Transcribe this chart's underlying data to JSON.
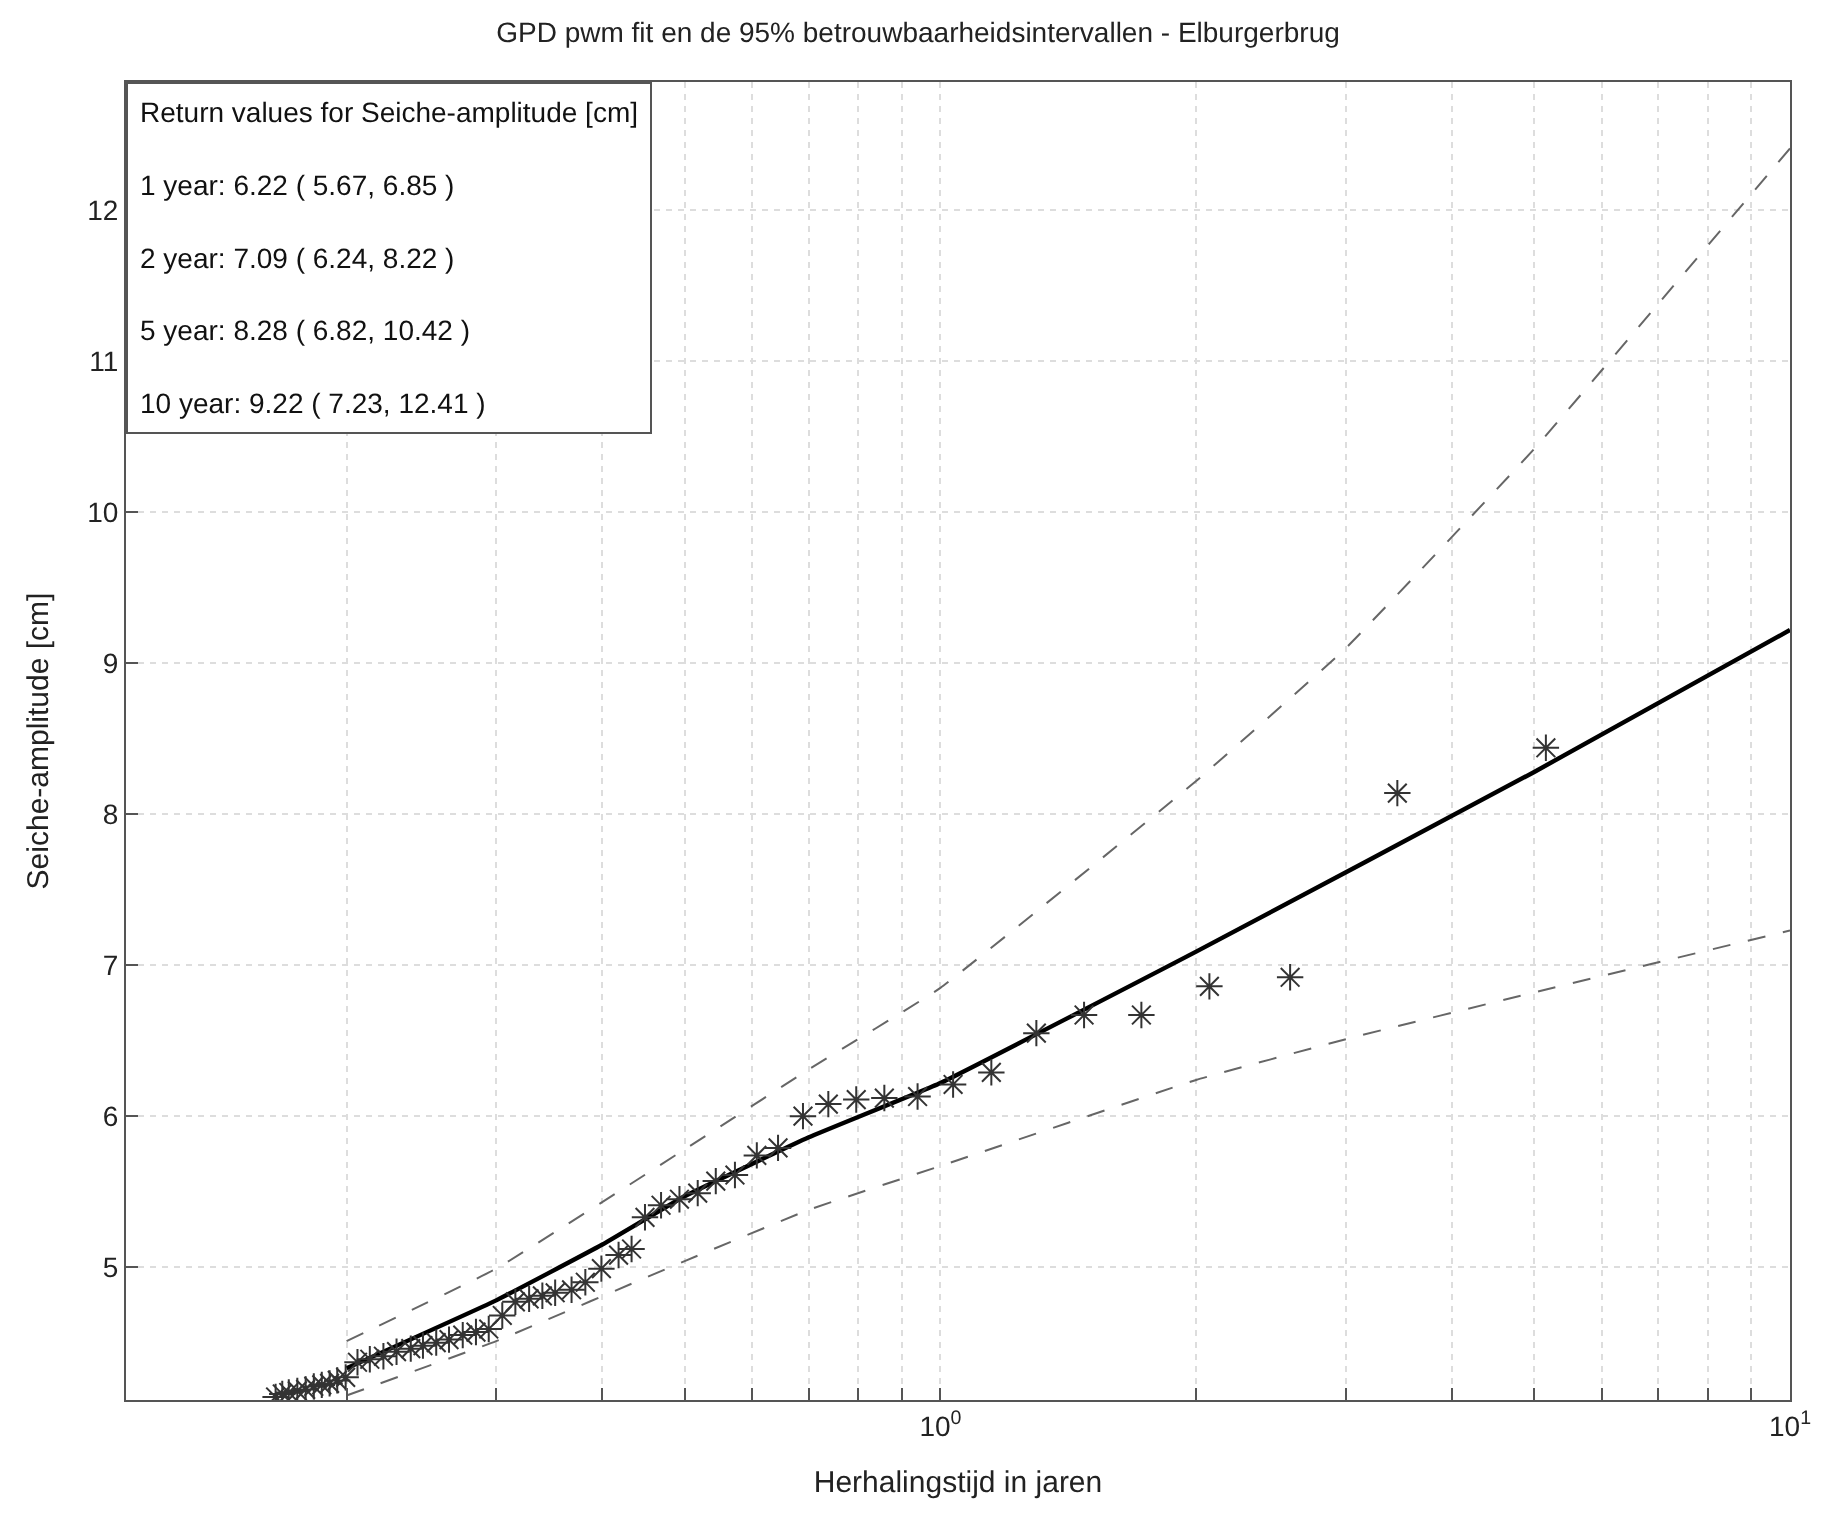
{
  "chart_data": {
    "type": "line",
    "title": "GPD pwm fit en de 95% betrouwbaarheidsintervallen - Elburgerbrug",
    "xlabel": "Herhalingstijd in jaren",
    "ylabel": "Seiche-amplitude [cm]",
    "log": "x",
    "grid": true,
    "xlim": [
      0.11,
      10
    ],
    "ylim": [
      4.12,
      12.85
    ],
    "xticks": [
      {
        "value": 0.2,
        "label": null
      },
      {
        "value": 0.3,
        "label": null
      },
      {
        "value": 0.4,
        "label": null
      },
      {
        "value": 0.5,
        "label": null
      },
      {
        "value": 0.6,
        "label": null
      },
      {
        "value": 0.7,
        "label": null
      },
      {
        "value": 0.8,
        "label": null
      },
      {
        "value": 0.9,
        "label": null
      },
      {
        "value": 1,
        "label": "10$^{0}$"
      },
      {
        "value": 2,
        "label": null
      },
      {
        "value": 3,
        "label": null
      },
      {
        "value": 4,
        "label": null
      },
      {
        "value": 5,
        "label": null
      },
      {
        "value": 6,
        "label": null
      },
      {
        "value": 7,
        "label": null
      },
      {
        "value": 8,
        "label": null
      },
      {
        "value": 9,
        "label": null
      },
      {
        "value": 10,
        "label": "10$^{1}$"
      }
    ],
    "yticks": [
      5,
      6,
      7,
      8,
      9,
      10,
      11,
      12
    ],
    "annotations": [
      "Return values for Seiche-amplitude [cm]",
      "1 year: 6.22 ( 5.67, 6.85 )",
      "2 year: 7.09 ( 6.24, 8.22 )",
      "5 year: 8.28 ( 6.82, 10.42 )",
      "10 year: 9.22 ( 7.23, 12.41 )"
    ],
    "series": [
      {
        "color": "#000000",
        "line_style": "solid",
        "marker": "none",
        "x": [
          0.2,
          0.3,
          0.4,
          0.5,
          0.7,
          1,
          2,
          5,
          10
        ],
        "values": [
          4.33,
          4.78,
          5.15,
          5.47,
          5.86,
          6.22,
          7.09,
          8.28,
          9.22
        ]
      },
      {
        "color": "#666666",
        "line_style": "dashed",
        "marker": "none",
        "x": [
          0.2,
          0.3,
          0.5,
          0.7,
          1,
          2,
          3,
          5,
          10
        ],
        "values": [
          4.51,
          4.99,
          5.78,
          6.31,
          6.85,
          8.22,
          9.1,
          10.42,
          12.41
        ]
      },
      {
        "color": "#666666",
        "line_style": "dashed",
        "marker": "none",
        "x": [
          0.2,
          0.3,
          0.5,
          0.7,
          1,
          2,
          3,
          5,
          10
        ],
        "values": [
          4.15,
          4.51,
          5.04,
          5.38,
          5.67,
          6.24,
          6.51,
          6.82,
          7.23
        ]
      },
      {
        "type": "scatter",
        "color": "#333333",
        "marker": "cross",
        "x": [
          0.165,
          0.168,
          0.171,
          0.175,
          0.179,
          0.183,
          0.187,
          0.191,
          0.195,
          0.1995,
          0.206,
          0.213,
          0.221,
          0.229,
          0.238,
          0.246,
          0.255,
          0.264,
          0.274,
          0.284,
          0.294,
          0.305,
          0.316,
          0.328,
          0.34,
          0.352,
          0.368,
          0.382,
          0.399,
          0.418,
          0.433,
          0.449,
          0.469,
          0.493,
          0.518,
          0.544,
          0.573,
          0.608,
          0.644,
          0.689,
          0.738,
          0.796,
          0.859,
          0.94,
          1.035,
          1.148,
          1.297,
          1.476,
          1.724,
          2.073,
          2.58,
          3.45,
          5.16
        ],
        "values": [
          4.14,
          4.16,
          4.17,
          4.18,
          4.19,
          4.21,
          4.22,
          4.23,
          4.25,
          4.27,
          4.37,
          4.39,
          4.41,
          4.44,
          4.46,
          4.48,
          4.5,
          4.52,
          4.55,
          4.57,
          4.59,
          4.68,
          4.77,
          4.79,
          4.81,
          4.83,
          4.85,
          4.9,
          4.99,
          5.08,
          5.12,
          5.33,
          5.41,
          5.45,
          5.49,
          5.57,
          5.61,
          5.74,
          5.79,
          6.0,
          6.08,
          6.11,
          6.12,
          6.13,
          6.21,
          6.29,
          6.55,
          6.67,
          6.67,
          6.86,
          6.92,
          8.14,
          8.44
        ]
      }
    ]
  }
}
